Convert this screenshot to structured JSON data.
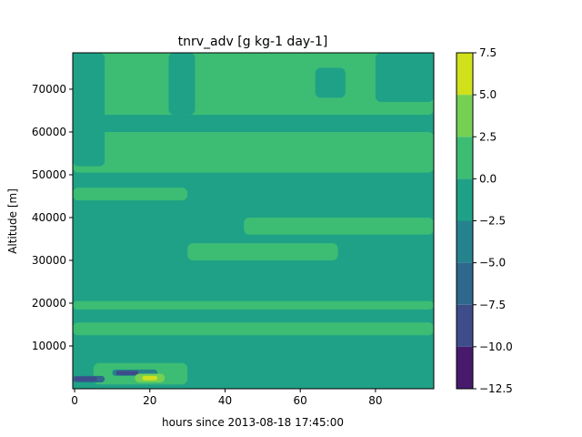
{
  "chart_data": {
    "type": "heatmap",
    "title": "tnrv_adv [g kg-1 day-1]",
    "xlabel": "hours since 2013-08-18 17:45:00",
    "ylabel": "Altitude [m]",
    "xlim": [
      -0.5,
      95.5
    ],
    "ylim": [
      0,
      78500
    ],
    "x_ticks": [
      0,
      20,
      40,
      60,
      80
    ],
    "y_ticks": [
      10000,
      20000,
      30000,
      40000,
      50000,
      60000,
      70000
    ],
    "colorbar": {
      "levels": [
        -12.5,
        -10.0,
        -7.5,
        -5.0,
        -2.5,
        0.0,
        2.5,
        5.0,
        7.5
      ],
      "tick_labels": [
        "−12.5",
        "−10.0",
        "−7.5",
        "−5.0",
        "−2.5",
        "0.0",
        "2.5",
        "5.0",
        "7.5"
      ],
      "colors": [
        "#481a6c",
        "#3e4c8a",
        "#30678d",
        "#25838e",
        "#1fa187",
        "#3dbc74",
        "#75d054",
        "#d0e11c"
      ]
    },
    "background_level_color": "#1fa187",
    "regions": [
      {
        "level": "0.0 to 2.5",
        "color": "#3dbc74",
        "x": [
          -0.5,
          95.5
        ],
        "y": [
          64000,
          78500
        ]
      },
      {
        "level": "0.0 to 2.5",
        "color": "#3dbc74",
        "x": [
          -0.5,
          95.5
        ],
        "y": [
          50500,
          60000
        ]
      },
      {
        "level": "0.0 to 2.5",
        "color": "#3dbc74",
        "x": [
          -0.5,
          95.5
        ],
        "y": [
          18500,
          20500
        ]
      },
      {
        "level": "0.0 to 2.5",
        "color": "#3dbc74",
        "x": [
          -0.5,
          95.5
        ],
        "y": [
          12500,
          15500
        ]
      },
      {
        "level": "0.0 to 2.5",
        "color": "#3dbc74",
        "x": [
          45,
          95.5
        ],
        "y": [
          36000,
          40000
        ]
      },
      {
        "level": "0.0 to 2.5",
        "color": "#3dbc74",
        "x": [
          -0.5,
          30
        ],
        "y": [
          44000,
          47000
        ]
      },
      {
        "level": "0.0 to 2.5",
        "color": "#3dbc74",
        "x": [
          30,
          70
        ],
        "y": [
          30000,
          34000
        ]
      },
      {
        "level": "0.0 to 2.5",
        "color": "#3dbc74",
        "x": [
          5,
          30
        ],
        "y": [
          1000,
          6000
        ]
      },
      {
        "level": "-2.5 to 0.0",
        "color": "#1fa187",
        "x": [
          -0.5,
          8
        ],
        "y": [
          52000,
          78500
        ]
      },
      {
        "level": "-2.5 to 0.0",
        "color": "#1fa187",
        "x": [
          25,
          32
        ],
        "y": [
          64000,
          78500
        ]
      },
      {
        "level": "-2.5 to 0.0",
        "color": "#1fa187",
        "x": [
          64,
          72
        ],
        "y": [
          68000,
          75000
        ]
      },
      {
        "level": "-2.5 to 0.0",
        "color": "#1fa187",
        "x": [
          80,
          95.5
        ],
        "y": [
          67000,
          78500
        ]
      },
      {
        "level": "-5.0 to -2.5",
        "color": "#25838e",
        "x": [
          10,
          22
        ],
        "y": [
          3000,
          4500
        ]
      },
      {
        "level": "-7.5 to -5.0",
        "color": "#30678d",
        "x": [
          -0.5,
          8
        ],
        "y": [
          1500,
          3000
        ]
      },
      {
        "level": "-10.0 to -7.5",
        "color": "#3e4c8a",
        "x": [
          0,
          6
        ],
        "y": [
          1800,
          2800
        ]
      },
      {
        "level": "-10.0 to -7.5",
        "color": "#3e4c8a",
        "x": [
          11,
          17
        ],
        "y": [
          3200,
          4200
        ]
      },
      {
        "level": "2.5 to 5.0",
        "color": "#75d054",
        "x": [
          16,
          24
        ],
        "y": [
          1500,
          3500
        ]
      },
      {
        "level": "5.0 to 7.5",
        "color": "#d0e11c",
        "x": [
          18,
          22
        ],
        "y": [
          2000,
          3000
        ]
      }
    ]
  }
}
